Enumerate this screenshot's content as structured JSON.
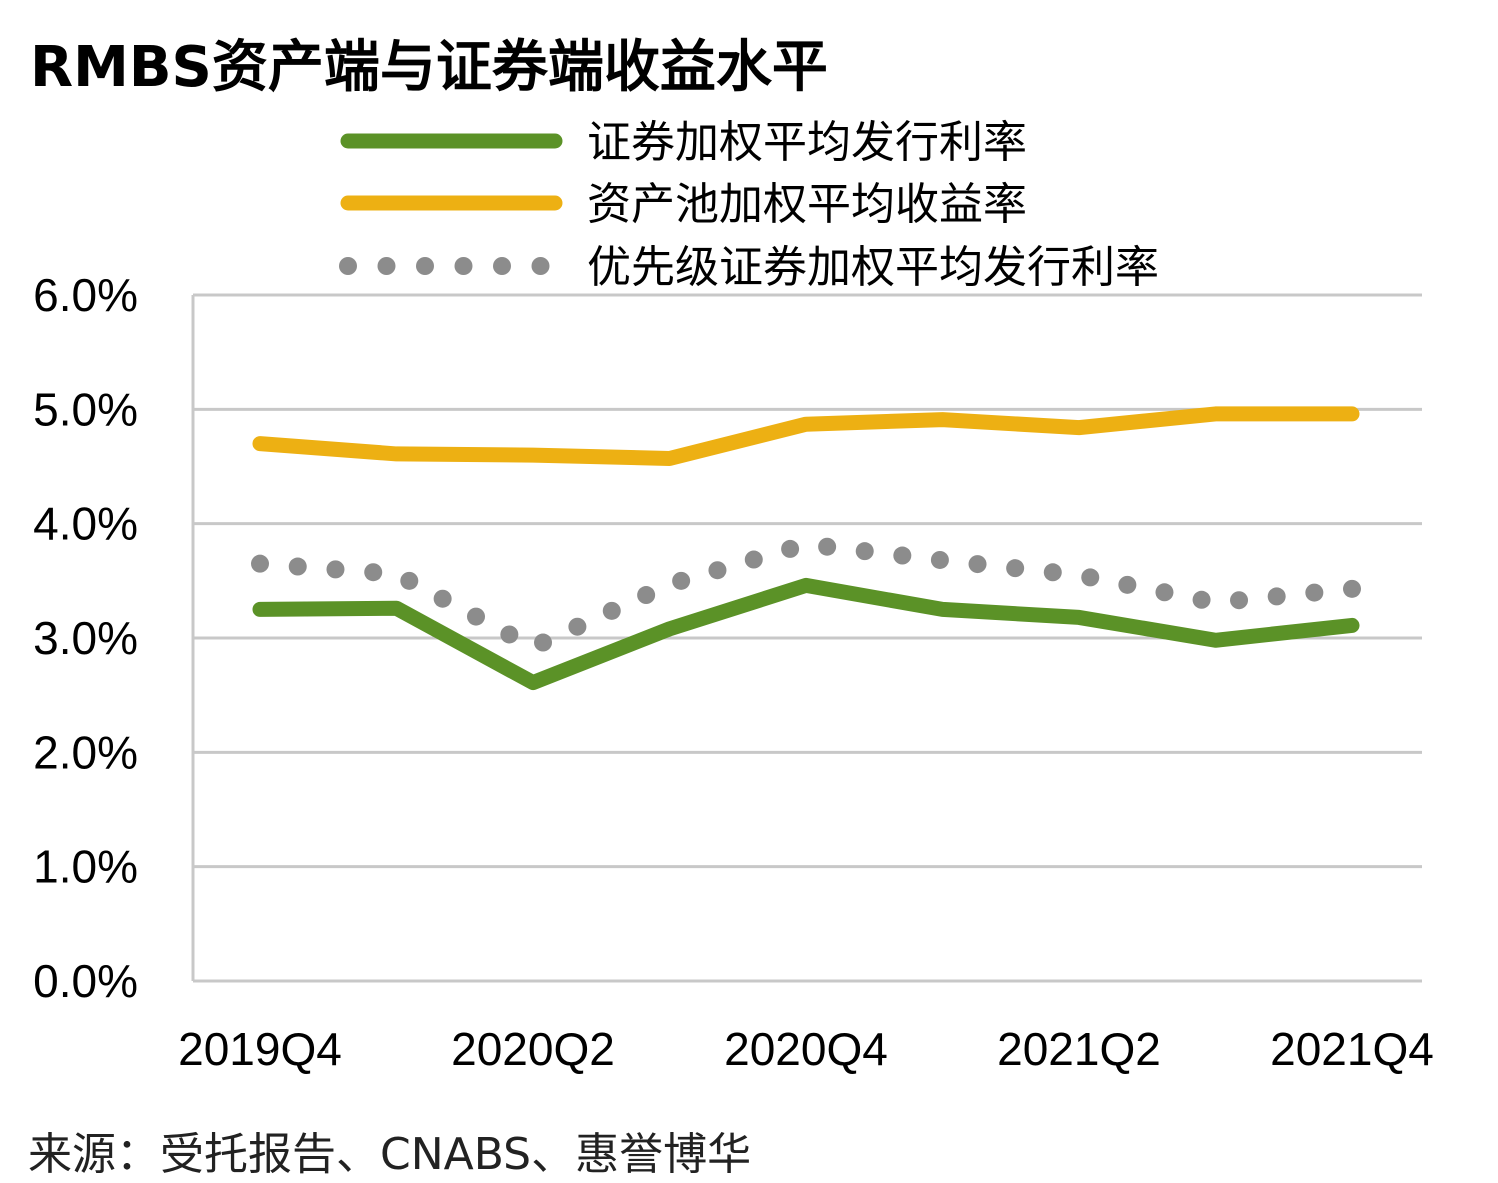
{
  "chart_data": {
    "type": "line",
    "title": "RMBS资产端与证券端收益水平",
    "x": [
      "2019Q4",
      "2020Q1",
      "2020Q2",
      "2020Q3",
      "2020Q4",
      "2021Q1",
      "2021Q2",
      "2021Q3",
      "2021Q4"
    ],
    "x_tick_labels": [
      "2019Q4",
      "2020Q2",
      "2020Q4",
      "2021Q2",
      "2021Q4"
    ],
    "y_tick_labels": [
      "0.0%",
      "1.0%",
      "2.0%",
      "3.0%",
      "4.0%",
      "5.0%",
      "6.0%"
    ],
    "ylim": [
      0,
      6
    ],
    "grid": true,
    "legend_position": "top",
    "series": [
      {
        "name": "证券加权平均发行利率",
        "color": "#5b9227",
        "style": "solid",
        "values": [
          3.25,
          3.26,
          2.61,
          3.08,
          3.46,
          3.25,
          3.18,
          2.98,
          3.11
        ]
      },
      {
        "name": "资产池加权平均收益率",
        "color": "#edb013",
        "style": "solid",
        "values": [
          4.7,
          4.61,
          4.6,
          4.57,
          4.87,
          4.91,
          4.84,
          4.96,
          4.96
        ]
      },
      {
        "name": "优先级证券加权平均发行利率",
        "color": "#8c8c8c",
        "style": "dotted",
        "values": [
          3.65,
          3.56,
          2.92,
          3.47,
          3.82,
          3.68,
          3.55,
          3.31,
          3.43
        ]
      }
    ]
  },
  "source": "来源：受托报告、CNABS、惠誉博华"
}
